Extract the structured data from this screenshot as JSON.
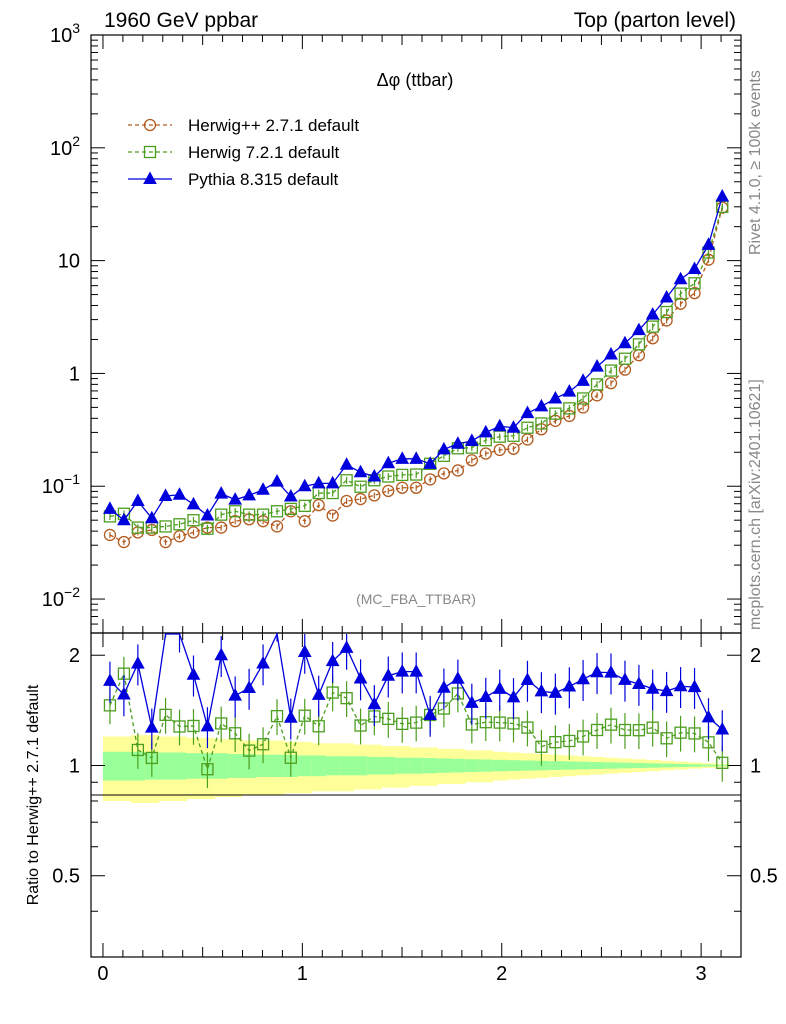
{
  "header": {
    "left_title": "1960 GeV ppbar",
    "right_title": "Top (parton level)"
  },
  "side_labels": {
    "rivet": "Rivet 4.1.0, ≥ 100k events",
    "mcplots": "mcplots.cern.ch [arXiv:2401.10621]"
  },
  "chart_data": {
    "type": "line",
    "title": "Δφ (ttbar)",
    "analysis_tag": "(MC_FBA_TTBAR)",
    "xlabel": "",
    "xlim": [
      -0.06,
      3.2
    ],
    "x_ticks": [
      "0",
      "1",
      "2",
      "3"
    ],
    "main": {
      "yscale": "log",
      "ylim": [
        0.005,
        1000
      ],
      "y_ticks": [
        {
          "base": "10",
          "exp": "3",
          "value": 1000
        },
        {
          "base": "10",
          "exp": "2",
          "value": 100
        },
        {
          "base": "10",
          "exp": "",
          "value": 10
        },
        {
          "base": "1",
          "exp": "",
          "value": 1
        },
        {
          "base": "10",
          "exp": "−1",
          "value": 0.1
        },
        {
          "base": "10",
          "exp": "−2",
          "value": 0.01
        }
      ]
    },
    "ratio": {
      "ylabel": "Ratio to Herwig++ 2.7.1 default",
      "ylim": [
        0.3,
        2.3
      ],
      "y_ticks": [
        "2",
        "1",
        "0.5"
      ],
      "y_tick_values": [
        2,
        1,
        0.5
      ],
      "band_inner_halfwidth": [
        0.09,
        0.09,
        0.09,
        0.085,
        0.085,
        0.085,
        0.08,
        0.08,
        0.08,
        0.075,
        0.075,
        0.07,
        0.07,
        0.07,
        0.065,
        0.065,
        0.06,
        0.06,
        0.06,
        0.055,
        0.055,
        0.05,
        0.05,
        0.048,
        0.045,
        0.043,
        0.04,
        0.038,
        0.036,
        0.034,
        0.032,
        0.03,
        0.028,
        0.026,
        0.024,
        0.022,
        0.02,
        0.018,
        0.016,
        0.014,
        0.012,
        0.01,
        0.008,
        0.006,
        0.005
      ],
      "band_outer_halfwidth": [
        0.2,
        0.2,
        0.21,
        0.21,
        0.2,
        0.2,
        0.19,
        0.19,
        0.18,
        0.18,
        0.17,
        0.17,
        0.17,
        0.16,
        0.16,
        0.15,
        0.15,
        0.15,
        0.14,
        0.14,
        0.13,
        0.13,
        0.12,
        0.12,
        0.11,
        0.11,
        0.1,
        0.1,
        0.09,
        0.085,
        0.08,
        0.075,
        0.07,
        0.065,
        0.06,
        0.055,
        0.05,
        0.045,
        0.04,
        0.035,
        0.03,
        0.025,
        0.02,
        0.015,
        0.01
      ]
    },
    "x": [
      0.035,
      0.105,
      0.175,
      0.245,
      0.314,
      0.384,
      0.454,
      0.524,
      0.593,
      0.663,
      0.733,
      0.803,
      0.873,
      0.942,
      1.012,
      1.082,
      1.152,
      1.222,
      1.292,
      1.361,
      1.431,
      1.501,
      1.571,
      1.641,
      1.71,
      1.78,
      1.85,
      1.92,
      1.99,
      2.059,
      2.129,
      2.199,
      2.269,
      2.339,
      2.408,
      2.478,
      2.548,
      2.618,
      2.688,
      2.757,
      2.827,
      2.897,
      2.967,
      3.037,
      3.106
    ],
    "series": [
      {
        "name": "Herwig++ 2.7.1 default",
        "color": "#b35a1f",
        "marker": "open-circle",
        "dashed": true,
        "values": [
          0.037,
          0.032,
          0.039,
          0.041,
          0.032,
          0.036,
          0.039,
          0.043,
          0.043,
          0.049,
          0.051,
          0.049,
          0.044,
          0.06,
          0.049,
          0.068,
          0.055,
          0.074,
          0.077,
          0.083,
          0.091,
          0.097,
          0.097,
          0.115,
          0.13,
          0.138,
          0.17,
          0.195,
          0.21,
          0.215,
          0.26,
          0.32,
          0.38,
          0.42,
          0.5,
          0.64,
          0.82,
          1.08,
          1.45,
          2.05,
          2.95,
          4.15,
          5.15,
          10.2,
          29.5
        ]
      },
      {
        "name": "Herwig 7.2.1 default",
        "color": "#4c9e1f",
        "marker": "open-square",
        "dashed": true,
        "values": [
          0.054,
          0.057,
          0.043,
          0.043,
          0.044,
          0.046,
          0.05,
          0.042,
          0.056,
          0.06,
          0.056,
          0.056,
          0.06,
          0.063,
          0.067,
          0.087,
          0.087,
          0.113,
          0.099,
          0.113,
          0.122,
          0.126,
          0.127,
          0.158,
          0.186,
          0.217,
          0.22,
          0.256,
          0.275,
          0.28,
          0.33,
          0.36,
          0.44,
          0.49,
          0.6,
          0.8,
          1.06,
          1.35,
          1.81,
          2.6,
          3.5,
          5.1,
          6.3,
          11.8,
          30.0
        ]
      },
      {
        "name": "Pythia 8.315 default",
        "color": "#0000dd",
        "marker": "filled-triangle",
        "dashed": false,
        "values": [
          0.063,
          0.05,
          0.074,
          0.052,
          0.082,
          0.084,
          0.069,
          0.055,
          0.086,
          0.076,
          0.083,
          0.093,
          0.11,
          0.081,
          0.1,
          0.106,
          0.106,
          0.155,
          0.133,
          0.122,
          0.16,
          0.175,
          0.175,
          0.158,
          0.212,
          0.238,
          0.252,
          0.3,
          0.34,
          0.33,
          0.445,
          0.51,
          0.6,
          0.69,
          0.86,
          1.15,
          1.47,
          1.85,
          2.42,
          3.32,
          4.71,
          6.83,
          8.43,
          13.8,
          37.0
        ]
      }
    ]
  }
}
